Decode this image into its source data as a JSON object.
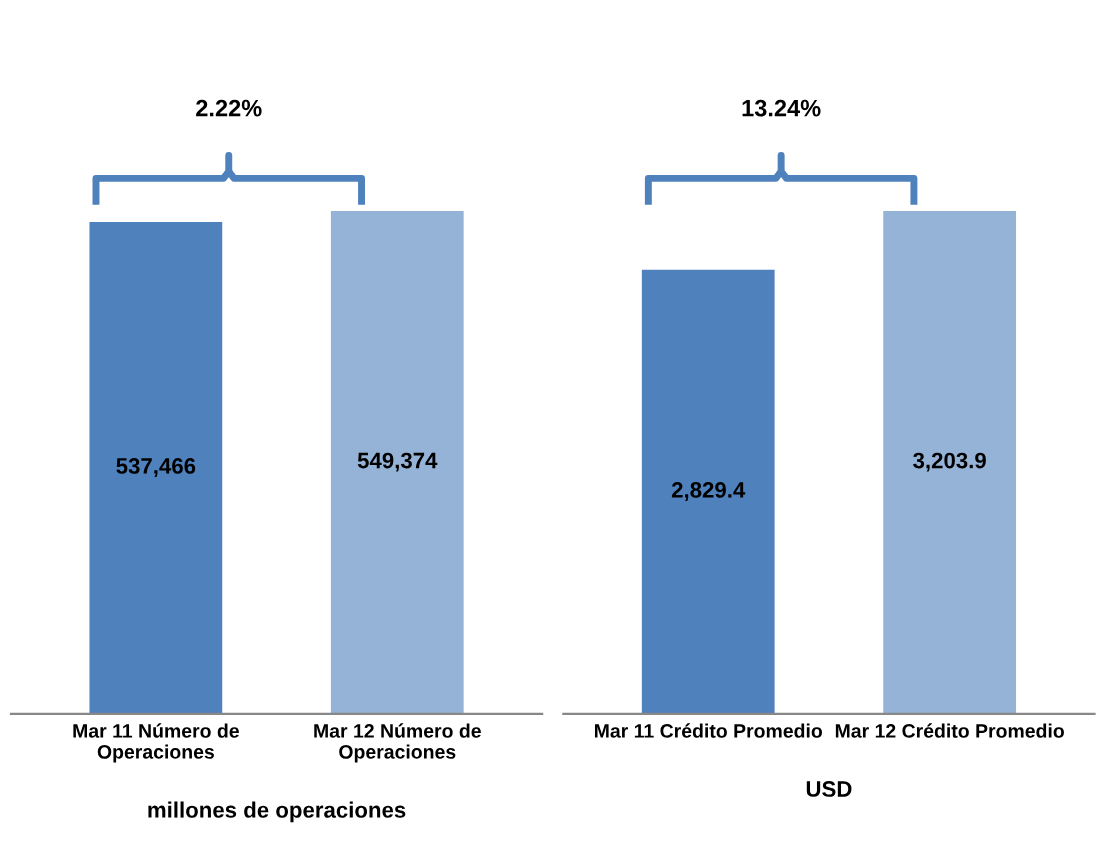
{
  "chart_data": [
    {
      "type": "bar",
      "categories": [
        "Mar 11 Número de\nOperaciones",
        "Mar 12 Número de\nOperaciones"
      ],
      "values": [
        537466,
        549374
      ],
      "colors": [
        "#4f81bd",
        "#95b3d7"
      ],
      "value_labels": [
        "537,466",
        "549,374"
      ],
      "tick_labels": "x",
      "xlabel": "millones de operaciones",
      "annotations": [
        {
          "text": "2.22%"
        }
      ],
      "grid": false,
      "legend": false
    },
    {
      "type": "bar",
      "categories": [
        "Mar 11 Crédito Promedio",
        "Mar 12 Crédito Promedio"
      ],
      "values": [
        2829.4,
        3203.9
      ],
      "colors": [
        "#4f81bd",
        "#95b3d7"
      ],
      "value_labels": [
        "2,829.4",
        "3,203.9"
      ],
      "tick_labels": "x",
      "xlabel": "USD",
      "annotations": [
        {
          "text": "13.24%"
        }
      ],
      "grid": false,
      "legend": false
    }
  ]
}
